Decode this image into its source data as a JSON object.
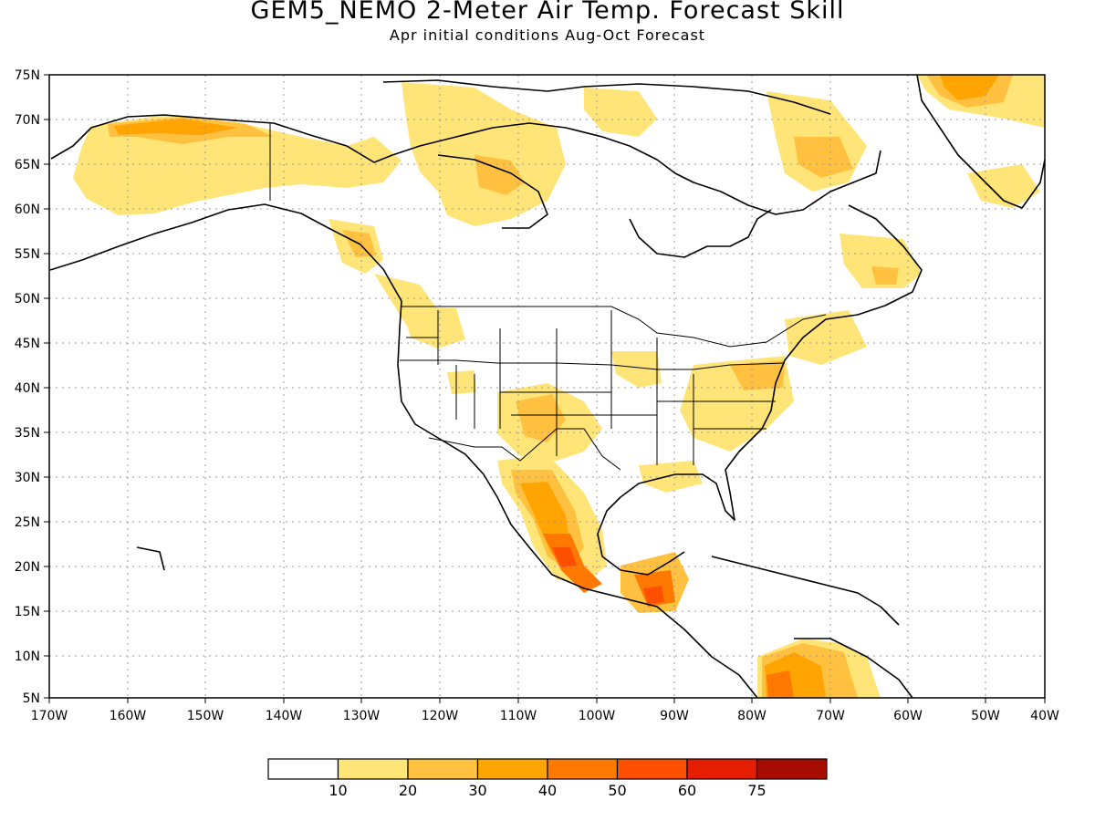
{
  "title": "GEM5_NEMO 2-Meter Air Temp. Forecast Skill",
  "subtitle": "Apr initial conditions  Aug-Oct Forecast",
  "lon_ticks": [
    "170W",
    "160W",
    "150W",
    "140W",
    "130W",
    "120W",
    "110W",
    "100W",
    "90W",
    "80W",
    "70W",
    "60W",
    "50W",
    "40W"
  ],
  "lat_ticks": [
    "75N",
    "70N",
    "65N",
    "60N",
    "55N",
    "50N",
    "45N",
    "40N",
    "35N",
    "30N",
    "25N",
    "20N",
    "15N",
    "10N",
    "5N"
  ],
  "colorbar": {
    "bins": [
      {
        "color": "#ffffff"
      },
      {
        "color": "#ffe477",
        "label": "10"
      },
      {
        "color": "#ffc13f",
        "label": "20"
      },
      {
        "color": "#ffa400",
        "label": "30"
      },
      {
        "color": "#ff7800",
        "label": "40"
      },
      {
        "color": "#ff4f00",
        "label": "50"
      },
      {
        "color": "#e51e00",
        "label": "60"
      },
      {
        "color": "#a60d00",
        "label": "75"
      }
    ]
  }
}
